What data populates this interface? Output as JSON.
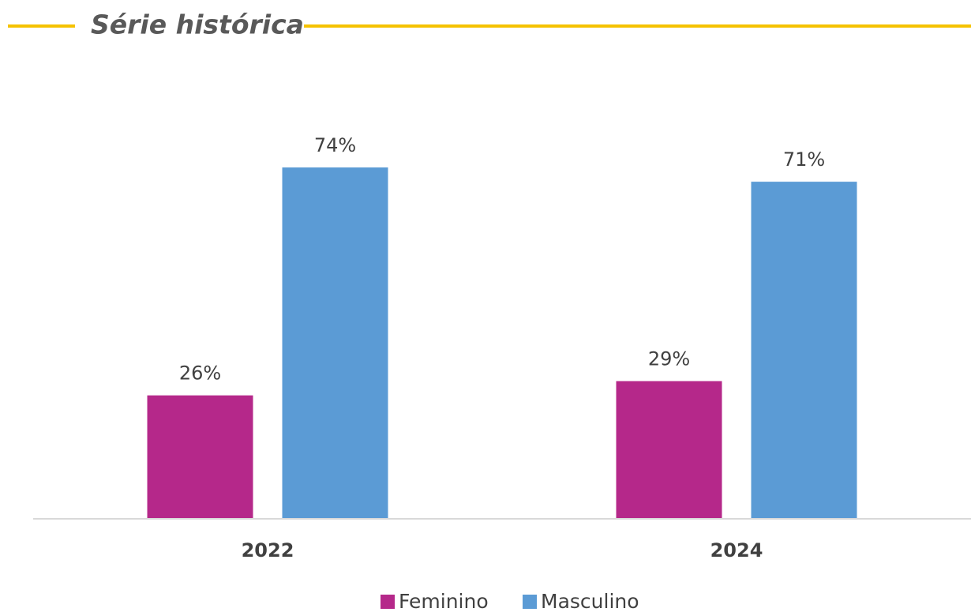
{
  "chart_data": {
    "type": "bar",
    "title": "Série histórica",
    "categories": [
      "2022",
      "2024"
    ],
    "series": [
      {
        "name": "Feminino",
        "color": "#b5288a",
        "values": [
          26,
          29
        ],
        "value_labels": [
          "26%",
          "29%"
        ]
      },
      {
        "name": "Masculino",
        "color": "#5b9bd5",
        "values": [
          74,
          71
        ],
        "value_labels": [
          "74%",
          "71%"
        ]
      }
    ],
    "ylim": [
      0,
      80
    ]
  }
}
